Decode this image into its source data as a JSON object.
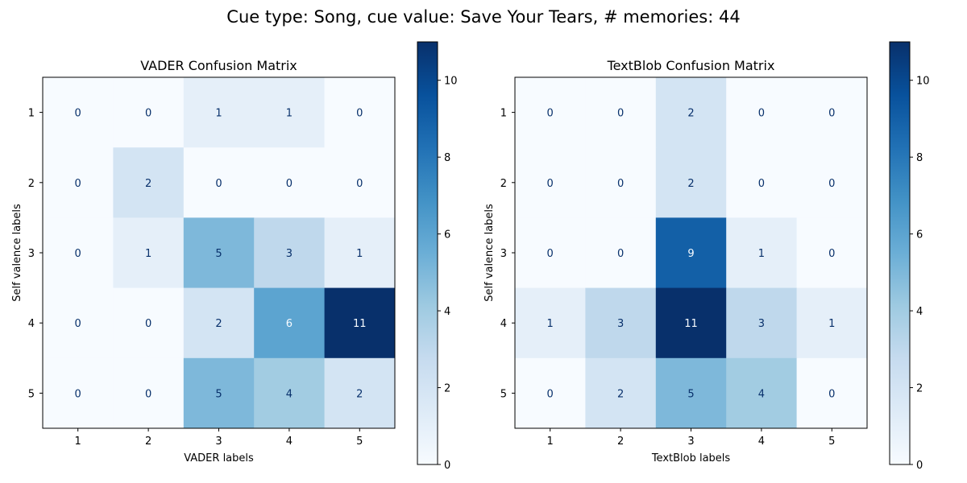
{
  "figure": {
    "suptitle": "Cue type: Song, cue value: Save Your Tears, # memories: 44"
  },
  "colors": {
    "cmap_low": "#f7fbff",
    "cmap_high": "#08306b",
    "text_dark": "#08306b",
    "text_light": "#f7fbff",
    "axis": "#000000"
  },
  "chart_data": [
    {
      "type": "heatmap",
      "title": "VADER Confusion Matrix",
      "xlabel": "VADER labels",
      "ylabel": "Self valence labels",
      "x_categories": [
        "1",
        "2",
        "3",
        "4",
        "5"
      ],
      "y_categories": [
        "1",
        "2",
        "3",
        "4",
        "5"
      ],
      "values": [
        [
          0,
          0,
          1,
          1,
          0
        ],
        [
          0,
          2,
          0,
          0,
          0
        ],
        [
          0,
          1,
          5,
          3,
          1
        ],
        [
          0,
          0,
          2,
          6,
          11
        ],
        [
          0,
          0,
          5,
          4,
          2
        ]
      ],
      "colorbar": {
        "min": 0,
        "max": 11,
        "ticks": [
          0,
          2,
          4,
          6,
          8,
          10
        ]
      },
      "colormap": "Blues"
    },
    {
      "type": "heatmap",
      "title": "TextBlob Confusion Matrix",
      "xlabel": "TextBlob labels",
      "ylabel": "Self valence labels",
      "x_categories": [
        "1",
        "2",
        "3",
        "4",
        "5"
      ],
      "y_categories": [
        "1",
        "2",
        "3",
        "4",
        "5"
      ],
      "values": [
        [
          0,
          0,
          2,
          0,
          0
        ],
        [
          0,
          0,
          2,
          0,
          0
        ],
        [
          0,
          0,
          9,
          1,
          0
        ],
        [
          1,
          3,
          11,
          3,
          1
        ],
        [
          0,
          2,
          5,
          4,
          0
        ]
      ],
      "colorbar": {
        "min": 0,
        "max": 11,
        "ticks": [
          0,
          2,
          4,
          6,
          8,
          10
        ]
      },
      "colormap": "Blues"
    }
  ]
}
